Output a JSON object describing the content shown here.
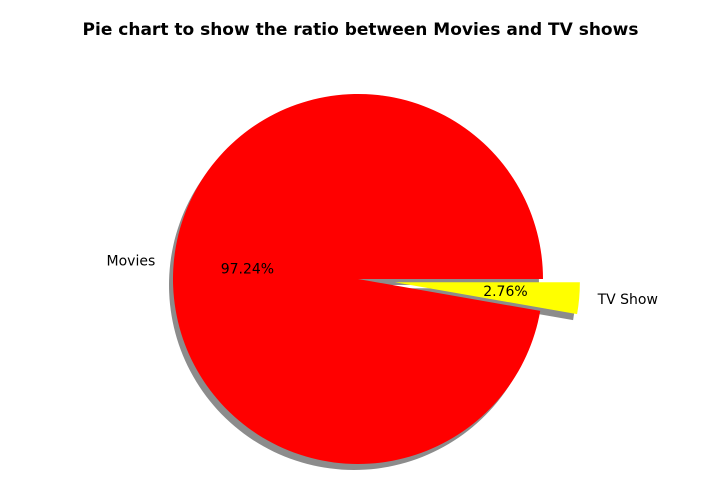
{
  "chart_data": {
    "type": "pie",
    "title": "Pie chart to show the ratio between Movies and TV shows",
    "slices": [
      {
        "label": "Movies",
        "value": 97.24,
        "pct_label": "97.24%",
        "color": "#ff0000",
        "explode": 0
      },
      {
        "label": "TV Show",
        "value": 2.76,
        "pct_label": "2.76%",
        "color": "#ffff00",
        "explode": 0.2
      }
    ],
    "shadow": true,
    "start_angle_deg": 0,
    "direction": "counterclockwise",
    "legend": "none"
  }
}
